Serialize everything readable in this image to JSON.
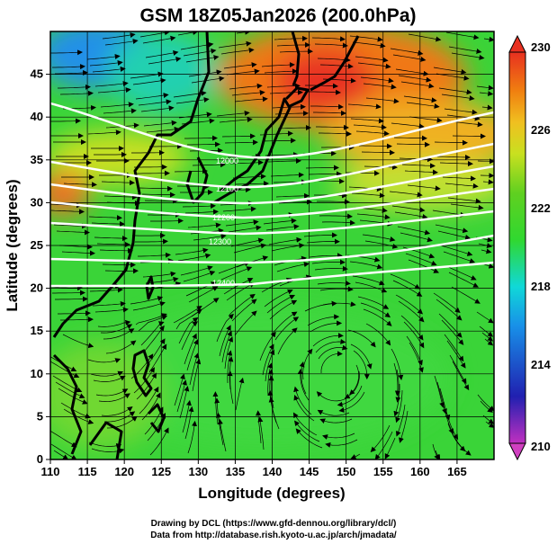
{
  "title": "GSM 18Z05Jan2026 (200.0hPa)",
  "x_axis_label": "Longitude (degrees)",
  "y_axis_label": "Latitude (degrees)",
  "x_ticks": [
    "110",
    "115",
    "120",
    "125",
    "130",
    "135",
    "140",
    "145",
    "150",
    "155",
    "160",
    "165"
  ],
  "y_ticks": [
    "0",
    "5",
    "10",
    "15",
    "20",
    "25",
    "30",
    "35",
    "40",
    "45"
  ],
  "colorbar": {
    "labels": [
      "230",
      "226",
      "222",
      "218",
      "214",
      "210"
    ],
    "min": 210,
    "max": 230,
    "colors": [
      "#c030c0",
      "#2020b0",
      "#1890e8",
      "#10d8d8",
      "#30d830",
      "#60d020",
      "#e0e020",
      "#f08010",
      "#e83020"
    ]
  },
  "contour_labels": [
    "12000",
    "12100",
    "12200",
    "12300",
    "12400"
  ],
  "credits": {
    "line1": "Drawing by DCL (https://www.gfd-dennou.org/library/dcl/)",
    "line2": "Data from http://database.rish.kyoto-u.ac.jp/arch/jmadata/"
  },
  "chart_data": {
    "type": "heatmap",
    "title": "GSM 18Z05Jan2026 (200.0hPa)",
    "xlabel": "Longitude (degrees)",
    "ylabel": "Latitude (degrees)",
    "xlim": [
      110,
      170
    ],
    "ylim": [
      0,
      50
    ],
    "color_range": [
      210,
      230
    ],
    "overlays": [
      "streamlines",
      "geopotential height contours",
      "coastlines"
    ]
  }
}
